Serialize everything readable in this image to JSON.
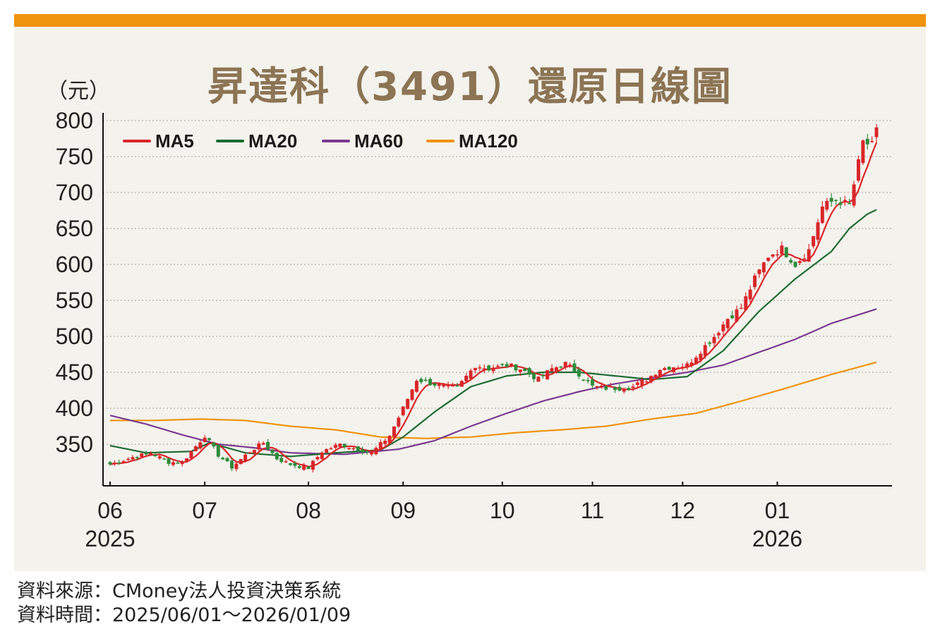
{
  "title": "昇達科（3491）還原日線圖",
  "unit_label": "（元）",
  "footer": {
    "source": "資料來源：CMoney法人投資決策系統",
    "period": "資料時間：2025/06/01～2026/01/09"
  },
  "colors": {
    "accent_bar": "#ef930f",
    "title": "#8c7454",
    "background": "#f4f2ec",
    "up_candle": "#d9262a",
    "down_candle": "#2e8b3c"
  },
  "chart_data": {
    "type": "candlestick",
    "title": "昇達科（3491）還原日線圖",
    "ylabel": "（元）",
    "ylim": [
      290,
      800
    ],
    "y_ticks": [
      800,
      750,
      700,
      650,
      600,
      550,
      500,
      450,
      400,
      350
    ],
    "x_ticks": [
      {
        "label": "06",
        "sub": "2025"
      },
      {
        "label": "07",
        "sub": ""
      },
      {
        "label": "08",
        "sub": ""
      },
      {
        "label": "09",
        "sub": ""
      },
      {
        "label": "10",
        "sub": ""
      },
      {
        "label": "11",
        "sub": ""
      },
      {
        "label": "12",
        "sub": ""
      },
      {
        "label": "01",
        "sub": "2026"
      }
    ],
    "grid": "horizontal dotted",
    "legend_position": "top-left",
    "legend": [
      {
        "name": "MA5",
        "color": "#d9262a"
      },
      {
        "name": "MA20",
        "color": "#1d6b33"
      },
      {
        "name": "MA60",
        "color": "#7a3b8f"
      },
      {
        "name": "MA120",
        "color": "#ef930f"
      }
    ],
    "close_anchors": [
      [
        0,
        322
      ],
      [
        5,
        332
      ],
      [
        9,
        338
      ],
      [
        13,
        325
      ],
      [
        16,
        325
      ],
      [
        21,
        362
      ],
      [
        24,
        335
      ],
      [
        27,
        318
      ],
      [
        31,
        340
      ],
      [
        34,
        352
      ],
      [
        37,
        330
      ],
      [
        40,
        322
      ],
      [
        44,
        317
      ],
      [
        47,
        340
      ],
      [
        51,
        350
      ],
      [
        55,
        343
      ],
      [
        58,
        338
      ],
      [
        62,
        362
      ],
      [
        65,
        400
      ],
      [
        68,
        440
      ],
      [
        71,
        435
      ],
      [
        74,
        430
      ],
      [
        77,
        428
      ],
      [
        81,
        460
      ],
      [
        84,
        455
      ],
      [
        88,
        460
      ],
      [
        91,
        455
      ],
      [
        95,
        440
      ],
      [
        98,
        455
      ],
      [
        101,
        462
      ],
      [
        104,
        448
      ],
      [
        107,
        430
      ],
      [
        110,
        428
      ],
      [
        113,
        428
      ],
      [
        116,
        430
      ],
      [
        119,
        440
      ],
      [
        122,
        455
      ],
      [
        125,
        458
      ],
      [
        128,
        460
      ],
      [
        131,
        480
      ],
      [
        134,
        500
      ],
      [
        137,
        525
      ],
      [
        140,
        540
      ],
      [
        143,
        580
      ],
      [
        146,
        612
      ],
      [
        149,
        622
      ],
      [
        152,
        600
      ],
      [
        155,
        620
      ],
      [
        158,
        680
      ],
      [
        161,
        690
      ],
      [
        164,
        682
      ],
      [
        167,
        770
      ],
      [
        169,
        765
      ],
      [
        170,
        785
      ]
    ],
    "ma_series": {
      "MA20": [
        [
          0,
          348
        ],
        [
          8,
          338
        ],
        [
          18,
          340
        ],
        [
          22,
          352
        ],
        [
          30,
          338
        ],
        [
          40,
          333
        ],
        [
          50,
          338
        ],
        [
          60,
          342
        ],
        [
          65,
          360
        ],
        [
          72,
          395
        ],
        [
          80,
          430
        ],
        [
          88,
          445
        ],
        [
          96,
          450
        ],
        [
          104,
          450
        ],
        [
          112,
          445
        ],
        [
          120,
          440
        ],
        [
          128,
          444
        ],
        [
          136,
          480
        ],
        [
          144,
          535
        ],
        [
          152,
          580
        ],
        [
          160,
          618
        ],
        [
          164,
          650
        ],
        [
          168,
          670
        ],
        [
          170,
          676
        ]
      ],
      "MA60": [
        [
          0,
          390
        ],
        [
          8,
          378
        ],
        [
          16,
          363
        ],
        [
          24,
          350
        ],
        [
          32,
          345
        ],
        [
          40,
          338
        ],
        [
          52,
          336
        ],
        [
          64,
          343
        ],
        [
          72,
          355
        ],
        [
          80,
          375
        ],
        [
          88,
          393
        ],
        [
          96,
          410
        ],
        [
          104,
          423
        ],
        [
          112,
          434
        ],
        [
          120,
          442
        ],
        [
          128,
          450
        ],
        [
          136,
          460
        ],
        [
          144,
          478
        ],
        [
          152,
          496
        ],
        [
          160,
          518
        ],
        [
          170,
          538
        ]
      ],
      "MA120": [
        [
          0,
          383
        ],
        [
          10,
          383
        ],
        [
          20,
          385
        ],
        [
          30,
          383
        ],
        [
          40,
          375
        ],
        [
          50,
          370
        ],
        [
          60,
          360
        ],
        [
          70,
          358
        ],
        [
          80,
          360
        ],
        [
          90,
          366
        ],
        [
          100,
          370
        ],
        [
          110,
          375
        ],
        [
          120,
          385
        ],
        [
          130,
          393
        ],
        [
          140,
          410
        ],
        [
          150,
          428
        ],
        [
          160,
          447
        ],
        [
          170,
          464
        ]
      ]
    }
  }
}
